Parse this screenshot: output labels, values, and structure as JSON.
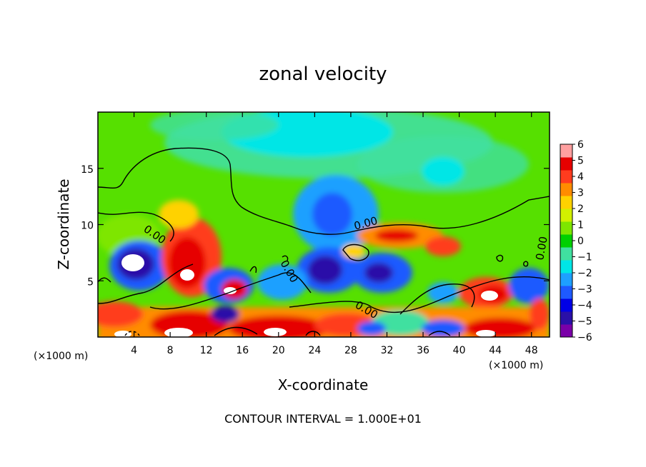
{
  "chart_data": {
    "type": "heatmap",
    "title": "zonal velocity",
    "xlabel": "X-coordinate",
    "ylabel": "Z-coordinate",
    "x_unit_left": "(×1000 m)",
    "x_unit_right": "(×1000 m)",
    "x_ticks": [
      4,
      8,
      12,
      16,
      20,
      24,
      28,
      32,
      36,
      40,
      44,
      48
    ],
    "y_ticks": [
      5,
      10,
      15
    ],
    "xlim": [
      0,
      50
    ],
    "ylim": [
      0,
      20
    ],
    "colorbar": {
      "ticks": [
        6,
        5,
        4,
        3,
        2,
        1,
        0,
        -1,
        -2,
        -3,
        -4,
        -5,
        -6
      ],
      "tick_labels": [
        "6",
        "5",
        "4",
        "3",
        "2",
        "1",
        "0",
        "−1",
        "−2",
        "−3",
        "−4",
        "−5",
        "−6"
      ],
      "range": [
        -6,
        6
      ],
      "colors": [
        "#7a00a8",
        "#2a10a8",
        "#0000e6",
        "#1e5aff",
        "#1ea0ff",
        "#00e6e6",
        "#40e0a0",
        "#00d000",
        "#7ee600",
        "#d2f000",
        "#ffd200",
        "#ff8c00",
        "#ff3c1e",
        "#e60000",
        "#ffa0a0"
      ]
    },
    "contour_labels": [
      "0.00",
      "0.00",
      "0.00",
      "0.00",
      "0.00"
    ],
    "contour_interval_text": "CONTOUR INTERVAL = 1.000E+01",
    "features": [
      {
        "x": 5.0,
        "z": 6.5,
        "value": -6
      },
      {
        "x": 10.0,
        "z": 6.5,
        "value": 5
      },
      {
        "x": 25.5,
        "z": 11.0,
        "value": -3.5
      },
      {
        "x": 25.0,
        "z": 5.5,
        "value": -4.5
      },
      {
        "x": 31.5,
        "z": 5.5,
        "value": -5
      },
      {
        "x": 34.0,
        "z": 8.5,
        "value": 3.5
      },
      {
        "x": 44.0,
        "z": 4.0,
        "value": 6
      },
      {
        "x": 19.0,
        "z": 0.8,
        "value": 5
      },
      {
        "x": 15.5,
        "z": 4.2,
        "value": 5
      },
      {
        "x": 3.0,
        "z": 2.5,
        "value": 4
      }
    ]
  }
}
